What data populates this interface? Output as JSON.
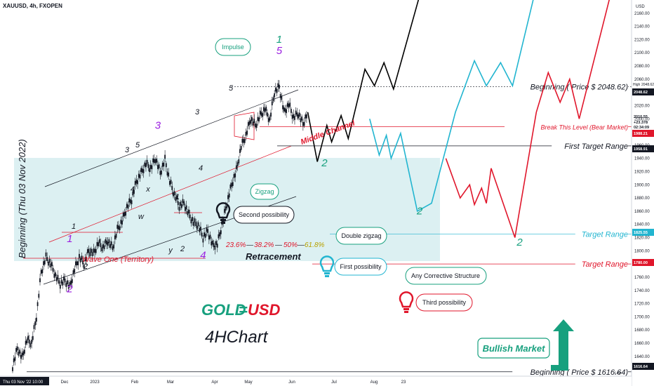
{
  "header": {
    "symbol": "XAUUSD, 4h, FXOPEN"
  },
  "axis": {
    "currency": "USD",
    "y_ticks": [
      "2160.00",
      "2140.00",
      "2120.00",
      "2100.00",
      "2080.00",
      "2060.00",
      "2040.00",
      "2020.00",
      "2000.00",
      "1980.00",
      "1960.00",
      "1940.00",
      "1920.00",
      "1900.00",
      "1880.00",
      "1860.00",
      "1840.00",
      "1820.00",
      "1800.00",
      "1780.00",
      "1760.00",
      "1740.00",
      "1720.00",
      "1700.00",
      "1680.00",
      "1660.00",
      "1640.00"
    ],
    "y_min": 1610,
    "y_max": 2180,
    "x_ticks": [
      "Dec",
      "2023",
      "Feb",
      "Mar",
      "Apr",
      "May",
      "Jun",
      "Jul",
      "Aug",
      "23"
    ],
    "x_start_label": "Thu 03 Nov '22  10:00",
    "x_end_label": "Low"
  },
  "price_tags": [
    {
      "label": "High",
      "value": "2048.62",
      "kind": "high-label"
    },
    {
      "label": "",
      "value": "2048.62",
      "kind": "dark"
    },
    {
      "label": "",
      "value": "2010.55",
      "kind": "last"
    },
    {
      "label": "",
      "value": "+23.378",
      "kind": "last-sub"
    },
    {
      "label": "",
      "value": "02:34:09",
      "kind": "last-sub2"
    },
    {
      "label": "",
      "value": "1988.21",
      "kind": "red"
    },
    {
      "label": "",
      "value": "1958.91",
      "kind": "dark"
    },
    {
      "label": "",
      "value": "1825.55",
      "kind": "cyan"
    },
    {
      "label": "",
      "value": "1780.00",
      "kind": "red"
    },
    {
      "label": "",
      "value": "1616.64",
      "kind": "dark"
    }
  ],
  "levels": [
    {
      "text": "Beginning ( Price $ 2048.62)",
      "price": 2048.62,
      "color": "#131722"
    },
    {
      "text": "Break This Level (Bear Market)",
      "price": 1988.21,
      "color": "#e0162b"
    },
    {
      "text": "First Target Range",
      "price": 1958.91,
      "color": "#131722"
    },
    {
      "text": "Target Range",
      "price": 1825.55,
      "color": "#22b5d0"
    },
    {
      "text": "Target Range",
      "price": 1780.0,
      "color": "#e0162b"
    },
    {
      "text": "Beginning ( Price $ 1616.64)",
      "price": 1616.64,
      "color": "#131722"
    }
  ],
  "labels": {
    "vertical": "Beginning (Thu 03 Nov 2022)",
    "wave_one": "Wave One (Territory)",
    "middle_channel": "Middle Channel",
    "fib_236": "23.6%",
    "fib_382": "38.2%",
    "fib_50": "50%",
    "fib_618": "61.8%",
    "fib_sep": "—",
    "retracement": "Retracement",
    "gold": "GOLD",
    "eq": "=",
    "usd": "USD",
    "chart_name": "4HChart",
    "impulse": "Impulse",
    "zigzag": "Zigzag",
    "double_zigzag": "Double zigzag",
    "second_possibility": "Second possibility",
    "first_possibility": "First possibility",
    "third_possibility": "Third possibility",
    "any_corrective": "Any Corrective Structure",
    "bullish_market": "Bullish Market",
    "w1": "1",
    "w2": "2",
    "w3": "3",
    "w4": "4",
    "w5": "5",
    "wx": "x",
    "wy": "y",
    "ww": "w"
  },
  "chart_data": {
    "type": "line",
    "title": "",
    "ylim": [
      1610,
      2180
    ],
    "series": [
      {
        "name": "",
        "kind": "price-history",
        "points": [
          [
            0,
            1625
          ],
          [
            2,
            1652
          ],
          [
            4,
            1638
          ],
          [
            6,
            1665
          ],
          [
            8,
            1660
          ],
          [
            10,
            1700
          ],
          [
            12,
            1768
          ],
          [
            14,
            1790
          ],
          [
            16,
            1780
          ],
          [
            18,
            1762
          ],
          [
            20,
            1750
          ],
          [
            22,
            1755
          ],
          [
            24,
            1745
          ],
          [
            26,
            1772
          ],
          [
            28,
            1790
          ],
          [
            30,
            1780
          ],
          [
            32,
            1800
          ],
          [
            34,
            1796
          ],
          [
            36,
            1812
          ],
          [
            38,
            1805
          ],
          [
            40,
            1815
          ],
          [
            42,
            1804
          ],
          [
            44,
            1832
          ],
          [
            46,
            1845
          ],
          [
            48,
            1866
          ],
          [
            50,
            1878
          ],
          [
            52,
            1905
          ],
          [
            54,
            1918
          ],
          [
            56,
            1932
          ],
          [
            58,
            1925
          ],
          [
            60,
            1940
          ],
          [
            62,
            1918
          ],
          [
            64,
            1938
          ],
          [
            66,
            1905
          ],
          [
            68,
            1885
          ],
          [
            70,
            1868
          ],
          [
            72,
            1872
          ],
          [
            74,
            1855
          ],
          [
            76,
            1843
          ],
          [
            78,
            1838
          ],
          [
            80,
            1820
          ],
          [
            82,
            1830
          ],
          [
            84,
            1808
          ],
          [
            86,
            1810
          ],
          [
            88,
            1840
          ],
          [
            90,
            1872
          ],
          [
            92,
            1900
          ],
          [
            94,
            1922
          ],
          [
            96,
            1958
          ],
          [
            98,
            1975
          ],
          [
            100,
            2000
          ],
          [
            102,
            1990
          ],
          [
            104,
            2005
          ],
          [
            106,
            2015
          ],
          [
            108,
            1998
          ],
          [
            110,
            2040
          ],
          [
            112,
            2048.62
          ],
          [
            114,
            2010
          ],
          [
            116,
            2022
          ],
          [
            118,
            2002
          ],
          [
            120,
            2008
          ],
          [
            122,
            1992
          ],
          [
            124,
            2010.55
          ]
        ]
      },
      {
        "name": "",
        "kind": "projection-black",
        "points": [
          [
            124,
            2010
          ],
          [
            128,
            1935
          ],
          [
            132,
            1990
          ],
          [
            134,
            1965
          ],
          [
            138,
            2005
          ],
          [
            141,
            1970
          ],
          [
            148,
            2075
          ],
          [
            152,
            2050
          ],
          [
            156,
            2085
          ],
          [
            160,
            2045
          ],
          [
            172,
            2200
          ]
        ]
      },
      {
        "name": "",
        "kind": "projection-cyan",
        "points": [
          [
            150,
            2000
          ],
          [
            154,
            1945
          ],
          [
            157,
            1975
          ],
          [
            159,
            1940
          ],
          [
            163,
            1978
          ],
          [
            170,
            1860
          ],
          [
            176,
            1872
          ],
          [
            186,
            2010
          ],
          [
            194,
            2088
          ],
          [
            199,
            2050
          ],
          [
            205,
            2085
          ],
          [
            210,
            2050
          ],
          [
            220,
            2200
          ]
        ]
      },
      {
        "name": "",
        "kind": "projection-red",
        "points": [
          [
            182,
            1940
          ],
          [
            188,
            1880
          ],
          [
            192,
            1900
          ],
          [
            194,
            1870
          ],
          [
            197,
            1895
          ],
          [
            199,
            1872
          ],
          [
            201,
            1925
          ],
          [
            211,
            1820
          ],
          [
            220,
            2010
          ],
          [
            225,
            2070
          ],
          [
            230,
            2025
          ],
          [
            234,
            2060
          ],
          [
            238,
            2000
          ],
          [
            252,
            2200
          ]
        ]
      }
    ],
    "wave_labels": [
      {
        "text": "1",
        "x": 24,
        "y": 1813,
        "color": "#9b1fe0"
      },
      {
        "text": "2",
        "x": 24,
        "y": 1737,
        "color": "#9b1fe0"
      },
      {
        "text": "3",
        "x": 61,
        "y": 1985,
        "color": "#9b1fe0"
      },
      {
        "text": "4",
        "x": 80,
        "y": 1788,
        "color": "#9b1fe0"
      },
      {
        "text": "5",
        "x": 112,
        "y": 2098,
        "color": "#9b1fe0"
      },
      {
        "text": "1",
        "x": 112,
        "y": 2115,
        "color": "#17a07e"
      },
      {
        "text": "2",
        "x": 131,
        "y": 1928,
        "color": "#17a07e"
      },
      {
        "text": "2",
        "x": 171,
        "y": 1855,
        "color": "#17a07e"
      },
      {
        "text": "2",
        "x": 213,
        "y": 1808,
        "color": "#17a07e"
      }
    ]
  }
}
